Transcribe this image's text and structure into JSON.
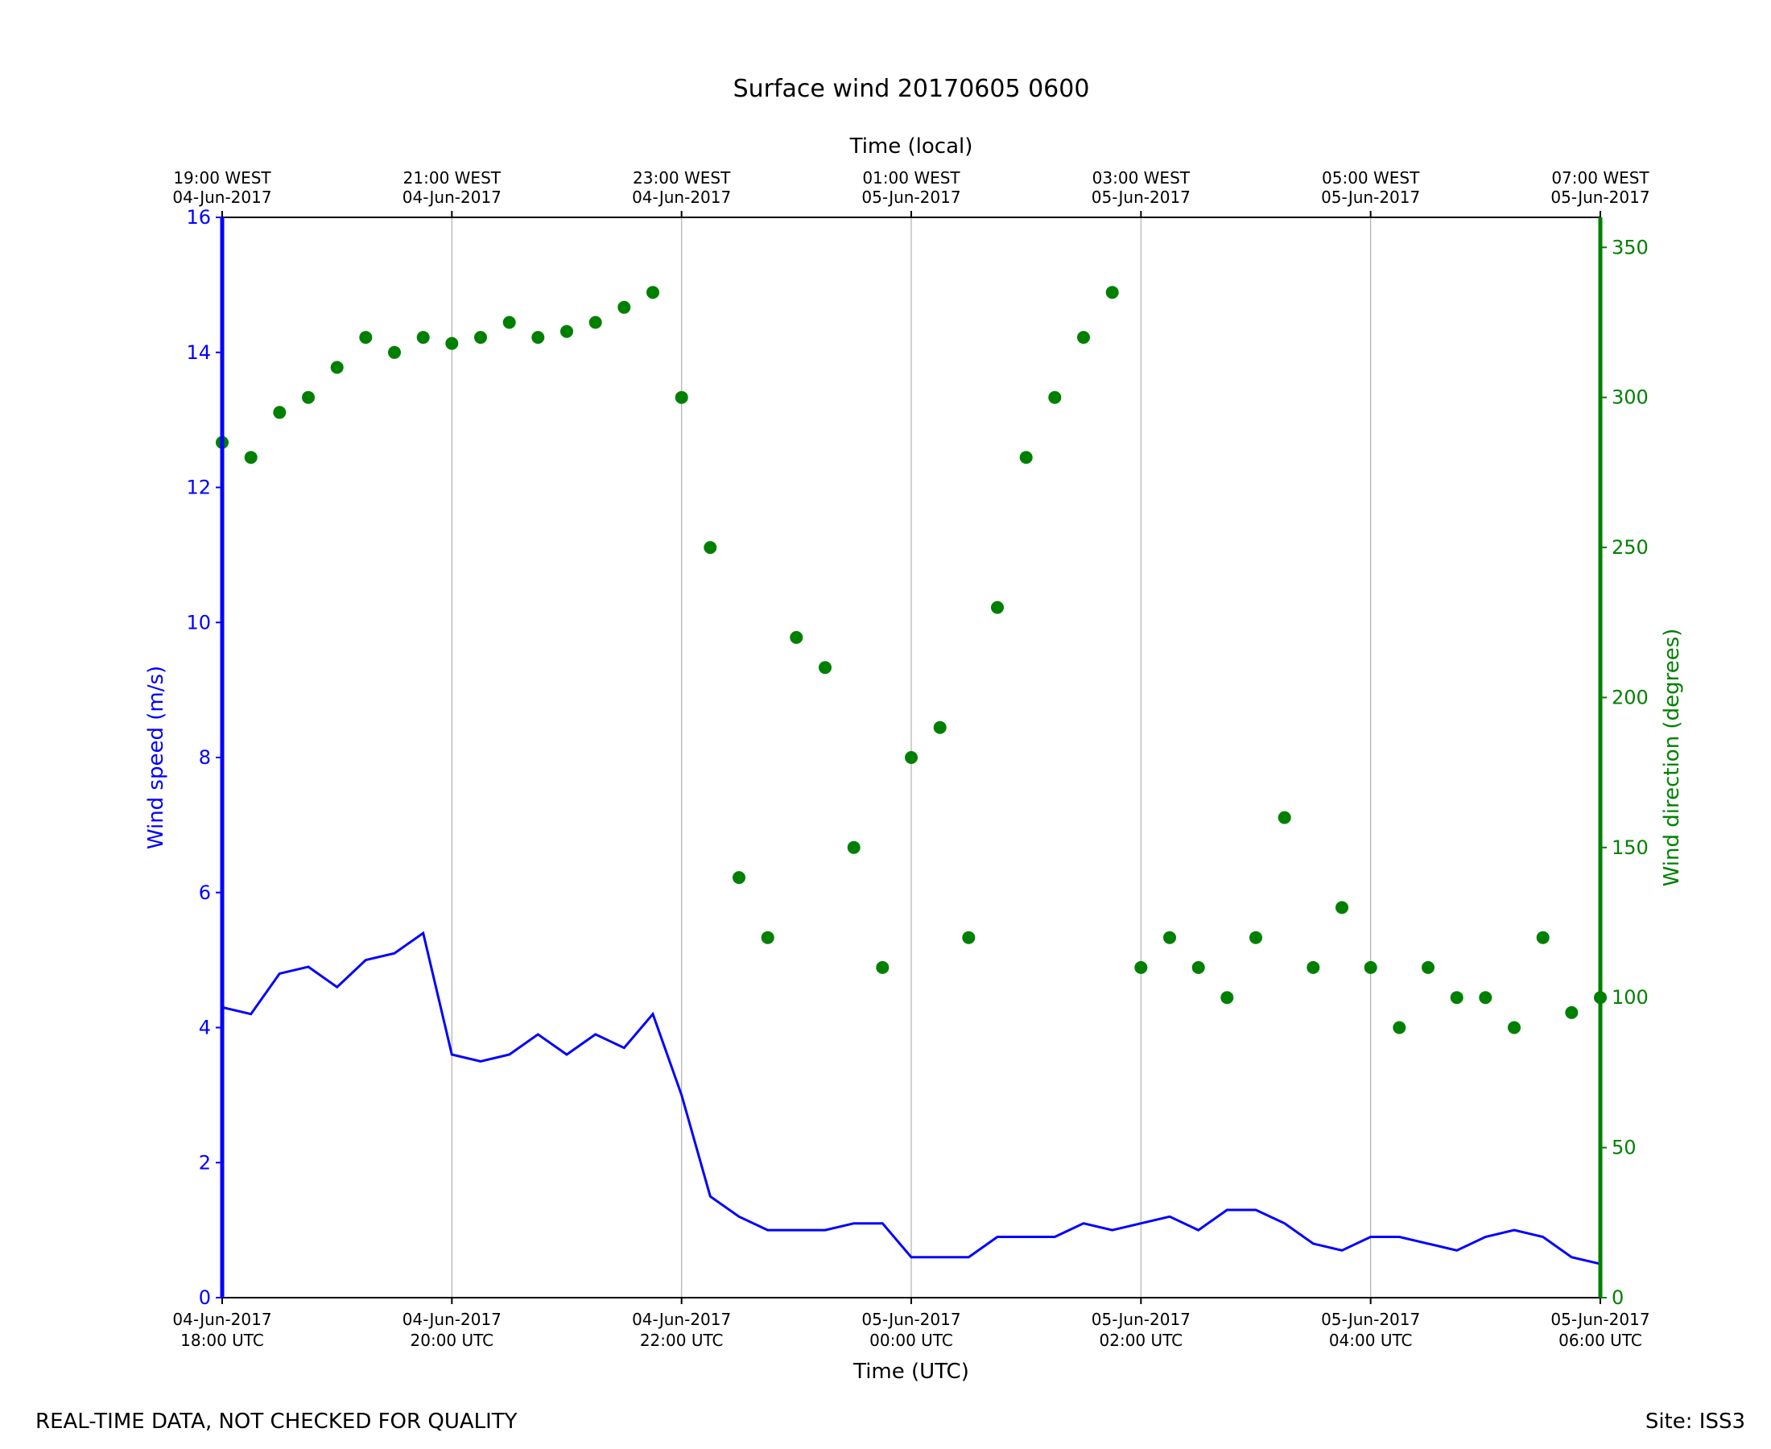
{
  "chart_data": {
    "type": "line",
    "title": "Surface wind 20170605 0600",
    "xlabel": "Time (UTC)",
    "xlabel_top": "Time (local)",
    "ylabel": "Wind speed (m/s)",
    "ylabel_right": "Wind direction (degrees)",
    "xlim": [
      "2017-06-04T18:00Z",
      "2017-06-05T06:00Z"
    ],
    "ylim": [
      0,
      16
    ],
    "ylim_right": [
      0,
      360
    ],
    "grid": "vertical",
    "x_ticks_bottom": [
      {
        "line1": "04-Jun-2017",
        "line2": "18:00 UTC"
      },
      {
        "line1": "04-Jun-2017",
        "line2": "20:00 UTC"
      },
      {
        "line1": "04-Jun-2017",
        "line2": "22:00 UTC"
      },
      {
        "line1": "05-Jun-2017",
        "line2": "00:00 UTC"
      },
      {
        "line1": "05-Jun-2017",
        "line2": "02:00 UTC"
      },
      {
        "line1": "05-Jun-2017",
        "line2": "04:00 UTC"
      },
      {
        "line1": "05-Jun-2017",
        "line2": "06:00 UTC"
      }
    ],
    "x_ticks_top": [
      {
        "line1": "19:00 WEST",
        "line2": "04-Jun-2017"
      },
      {
        "line1": "21:00 WEST",
        "line2": "04-Jun-2017"
      },
      {
        "line1": "23:00 WEST",
        "line2": "04-Jun-2017"
      },
      {
        "line1": "01:00 WEST",
        "line2": "05-Jun-2017"
      },
      {
        "line1": "03:00 WEST",
        "line2": "05-Jun-2017"
      },
      {
        "line1": "05:00 WEST",
        "line2": "05-Jun-2017"
      },
      {
        "line1": "07:00 WEST",
        "line2": "05-Jun-2017"
      }
    ],
    "y_ticks_left": [
      "0",
      "2",
      "4",
      "6",
      "8",
      "10",
      "12",
      "14",
      "16"
    ],
    "y_ticks_right": [
      "0",
      "50",
      "100",
      "150",
      "200",
      "250",
      "300",
      "350"
    ],
    "series": [
      {
        "name": "Wind speed",
        "axis": "left",
        "style": "line",
        "color": "#0000ff",
        "x": [
          "2017-06-04T18:00Z",
          "2017-06-04T18:15Z",
          "2017-06-04T18:30Z",
          "2017-06-04T18:45Z",
          "2017-06-04T19:00Z",
          "2017-06-04T19:15Z",
          "2017-06-04T19:30Z",
          "2017-06-04T19:45Z",
          "2017-06-04T20:00Z",
          "2017-06-04T20:15Z",
          "2017-06-04T20:30Z",
          "2017-06-04T20:45Z",
          "2017-06-04T21:00Z",
          "2017-06-04T21:15Z",
          "2017-06-04T21:30Z",
          "2017-06-04T21:45Z",
          "2017-06-04T22:00Z",
          "2017-06-04T22:15Z",
          "2017-06-04T22:30Z",
          "2017-06-04T22:45Z",
          "2017-06-04T23:00Z",
          "2017-06-04T23:15Z",
          "2017-06-04T23:30Z",
          "2017-06-04T23:45Z",
          "2017-06-05T00:00Z",
          "2017-06-05T00:15Z",
          "2017-06-05T00:30Z",
          "2017-06-05T00:45Z",
          "2017-06-05T01:00Z",
          "2017-06-05T01:15Z",
          "2017-06-05T01:30Z",
          "2017-06-05T01:45Z",
          "2017-06-05T02:00Z",
          "2017-06-05T02:15Z",
          "2017-06-05T02:30Z",
          "2017-06-05T02:45Z",
          "2017-06-05T03:00Z",
          "2017-06-05T03:15Z",
          "2017-06-05T03:30Z",
          "2017-06-05T03:45Z",
          "2017-06-05T04:00Z",
          "2017-06-05T04:15Z",
          "2017-06-05T04:30Z",
          "2017-06-05T04:45Z",
          "2017-06-05T05:00Z",
          "2017-06-05T05:15Z",
          "2017-06-05T05:30Z",
          "2017-06-05T05:45Z",
          "2017-06-05T06:00Z"
        ],
        "values": [
          4.3,
          4.2,
          4.8,
          4.9,
          4.6,
          5.0,
          5.1,
          5.4,
          3.6,
          3.5,
          3.6,
          3.9,
          3.6,
          3.9,
          3.7,
          4.2,
          3.0,
          1.5,
          1.2,
          1.0,
          1.0,
          1.0,
          1.1,
          1.1,
          0.6,
          0.6,
          0.6,
          0.9,
          0.9,
          0.9,
          1.1,
          1.0,
          1.1,
          1.2,
          1.0,
          1.3,
          1.3,
          1.1,
          0.8,
          0.7,
          0.9,
          0.9,
          0.8,
          0.7,
          0.9,
          1.0,
          0.9,
          0.6,
          0.5
        ]
      },
      {
        "name": "Wind direction",
        "axis": "right",
        "style": "scatter",
        "color": "#008000",
        "x": [
          "2017-06-04T18:00Z",
          "2017-06-04T18:15Z",
          "2017-06-04T18:30Z",
          "2017-06-04T18:45Z",
          "2017-06-04T19:00Z",
          "2017-06-04T19:15Z",
          "2017-06-04T19:30Z",
          "2017-06-04T19:45Z",
          "2017-06-04T20:00Z",
          "2017-06-04T20:15Z",
          "2017-06-04T20:30Z",
          "2017-06-04T20:45Z",
          "2017-06-04T21:00Z",
          "2017-06-04T21:15Z",
          "2017-06-04T21:30Z",
          "2017-06-04T21:45Z",
          "2017-06-04T22:00Z",
          "2017-06-04T22:15Z",
          "2017-06-04T22:30Z",
          "2017-06-04T22:45Z",
          "2017-06-04T23:00Z",
          "2017-06-04T23:15Z",
          "2017-06-04T23:30Z",
          "2017-06-04T23:45Z",
          "2017-06-05T00:00Z",
          "2017-06-05T00:15Z",
          "2017-06-05T00:30Z",
          "2017-06-05T00:45Z",
          "2017-06-05T01:00Z",
          "2017-06-05T01:15Z",
          "2017-06-05T01:30Z",
          "2017-06-05T01:45Z",
          "2017-06-05T02:00Z",
          "2017-06-05T02:15Z",
          "2017-06-05T02:30Z",
          "2017-06-05T02:45Z",
          "2017-06-05T03:00Z",
          "2017-06-05T03:15Z",
          "2017-06-05T03:30Z",
          "2017-06-05T03:45Z",
          "2017-06-05T04:00Z",
          "2017-06-05T04:15Z",
          "2017-06-05T04:30Z",
          "2017-06-05T04:45Z",
          "2017-06-05T05:00Z",
          "2017-06-05T05:15Z",
          "2017-06-05T05:30Z",
          "2017-06-05T05:45Z",
          "2017-06-05T06:00Z"
        ],
        "values": [
          285,
          280,
          295,
          300,
          310,
          320,
          315,
          320,
          318,
          320,
          325,
          320,
          322,
          325,
          330,
          335,
          300,
          250,
          140,
          120,
          220,
          210,
          150,
          110,
          180,
          190,
          120,
          230,
          280,
          300,
          320,
          335,
          110,
          120,
          110,
          100,
          120,
          160,
          110,
          130,
          110,
          90,
          110,
          100,
          100,
          90,
          120,
          95,
          100
        ]
      }
    ],
    "footer_left": "REAL-TIME DATA, NOT CHECKED FOR QUALITY",
    "footer_right": "Site: ISS3"
  }
}
